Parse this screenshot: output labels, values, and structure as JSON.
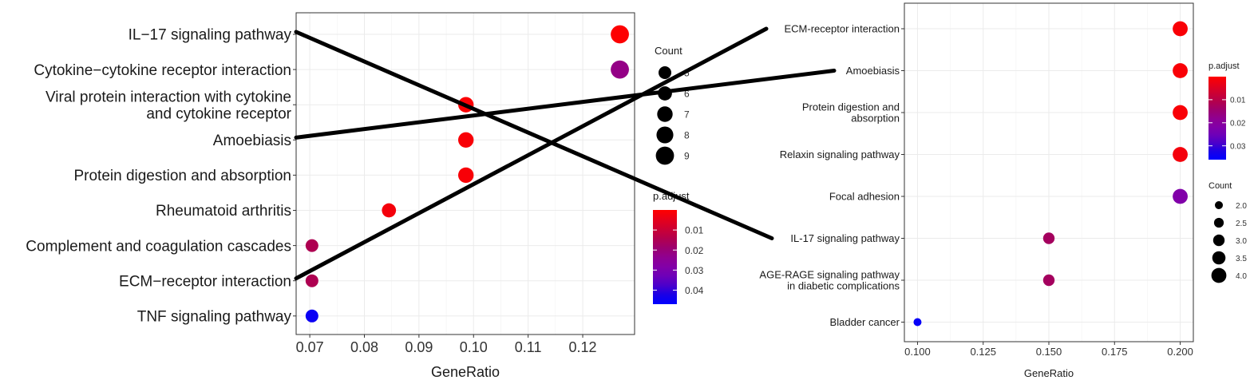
{
  "chart_data": [
    {
      "type": "scatter",
      "title": "",
      "xlabel": "GeneRatio",
      "ylabel": "",
      "xlim": [
        0.0675,
        0.1295
      ],
      "x_ticks": [
        "0.07",
        "0.08",
        "0.09",
        "0.10",
        "0.11",
        "0.12"
      ],
      "x_tick_values": [
        0.07,
        0.08,
        0.09,
        0.1,
        0.11,
        0.12
      ],
      "grid": true,
      "legend_placement": "right",
      "categories": [
        "IL−17 signaling pathway",
        "Cytokine−cytokine receptor interaction",
        "Viral protein interaction with cytokine\nand cytokine receptor",
        "Amoebiasis",
        "Protein digestion and absorption",
        "Rheumatoid arthritis",
        "Complement and coagulation cascades",
        "ECM−receptor interaction",
        "TNF signaling pathway"
      ],
      "points": [
        {
          "x": 0.1268,
          "count": 9,
          "p_adjust": 0.0003
        },
        {
          "x": 0.1268,
          "count": 9,
          "p_adjust": 0.022
        },
        {
          "x": 0.0986,
          "count": 7,
          "p_adjust": 0.0008
        },
        {
          "x": 0.0986,
          "count": 7,
          "p_adjust": 0.0012
        },
        {
          "x": 0.0986,
          "count": 7,
          "p_adjust": 0.0012
        },
        {
          "x": 0.0845,
          "count": 6,
          "p_adjust": 0.002
        },
        {
          "x": 0.0704,
          "count": 5,
          "p_adjust": 0.015
        },
        {
          "x": 0.0704,
          "count": 5,
          "p_adjust": 0.015
        },
        {
          "x": 0.0704,
          "count": 5,
          "p_adjust": 0.045
        }
      ],
      "legend_count": {
        "title": "Count",
        "values": [
          5,
          6,
          7,
          8,
          9
        ],
        "labels": [
          "5",
          "6",
          "7",
          "8",
          "9"
        ]
      },
      "legend_color": {
        "title": "p.adjust",
        "range": [
          0.0,
          0.047
        ],
        "ticks": [
          0.01,
          0.02,
          0.03,
          0.04
        ],
        "labels": [
          "0.01",
          "0.02",
          "0.03",
          "0.04"
        ],
        "low_color": "#ff0000",
        "high_color": "#0000ff"
      }
    },
    {
      "type": "scatter",
      "title": "",
      "xlabel": "GeneRatio",
      "ylabel": "",
      "xlim": [
        0.095,
        0.205
      ],
      "x_ticks": [
        "0.100",
        "0.125",
        "0.150",
        "0.175",
        "0.200"
      ],
      "x_tick_values": [
        0.1,
        0.125,
        0.15,
        0.175,
        0.2
      ],
      "grid": true,
      "legend_placement": "right",
      "categories": [
        "ECM-receptor interaction",
        "Amoebiasis",
        "Protein digestion and\nabsorption",
        "Relaxin signaling pathway",
        "Focal adhesion",
        "IL-17 signaling pathway",
        "AGE-RAGE signaling pathway\nin diabetic complications",
        "Bladder cancer"
      ],
      "points": [
        {
          "x": 0.2,
          "count": 4,
          "p_adjust": 0.0008
        },
        {
          "x": 0.2,
          "count": 4,
          "p_adjust": 0.0008
        },
        {
          "x": 0.2,
          "count": 4,
          "p_adjust": 0.0008
        },
        {
          "x": 0.2,
          "count": 4,
          "p_adjust": 0.0015
        },
        {
          "x": 0.2,
          "count": 4,
          "p_adjust": 0.022
        },
        {
          "x": 0.15,
          "count": 3,
          "p_adjust": 0.013
        },
        {
          "x": 0.15,
          "count": 3,
          "p_adjust": 0.013
        },
        {
          "x": 0.1,
          "count": 2,
          "p_adjust": 0.035
        }
      ],
      "legend_count": {
        "title": "Count",
        "values": [
          2.0,
          2.5,
          3.0,
          3.5,
          4.0
        ],
        "labels": [
          "2.0",
          "2.5",
          "3.0",
          "3.5",
          "4.0"
        ]
      },
      "legend_color": {
        "title": "p.adjust",
        "range": [
          0.0,
          0.036
        ],
        "ticks": [
          0.01,
          0.02,
          0.03
        ],
        "labels": [
          "0.01",
          "0.02",
          "0.03"
        ],
        "low_color": "#ff0000",
        "high_color": "#0000ff"
      }
    }
  ],
  "connectors": [
    {
      "from": "IL−17 signaling pathway",
      "to": "IL-17 signaling pathway"
    },
    {
      "from": "Amoebiasis",
      "to": "Amoebiasis"
    },
    {
      "from": "ECM−receptor interaction",
      "to": "ECM-receptor interaction"
    }
  ]
}
